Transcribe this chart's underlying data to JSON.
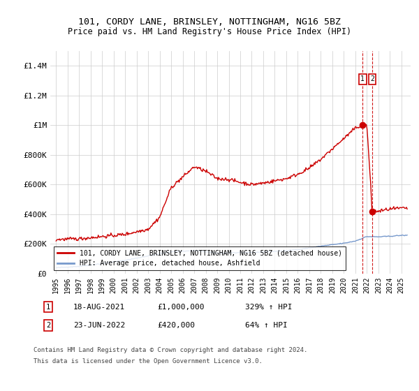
{
  "title": "101, CORDY LANE, BRINSLEY, NOTTINGHAM, NG16 5BZ",
  "subtitle": "Price paid vs. HM Land Registry's House Price Index (HPI)",
  "ylabel_ticks": [
    "£0",
    "£200K",
    "£400K",
    "£600K",
    "£800K",
    "£1M",
    "£1.2M",
    "£1.4M"
  ],
  "ylim": [
    0,
    1500000
  ],
  "yticks": [
    0,
    200000,
    400000,
    600000,
    800000,
    1000000,
    1200000,
    1400000
  ],
  "legend_line1": "101, CORDY LANE, BRINSLEY, NOTTINGHAM, NG16 5BZ (detached house)",
  "legend_line2": "HPI: Average price, detached house, Ashfield",
  "note1_date": "18-AUG-2021",
  "note1_price": "£1,000,000",
  "note1_hpi": "329% ↑ HPI",
  "note2_date": "23-JUN-2022",
  "note2_price": "£420,000",
  "note2_hpi": "64% ↑ HPI",
  "footnote1": "Contains HM Land Registry data © Crown copyright and database right 2024.",
  "footnote2": "This data is licensed under the Open Government Licence v3.0.",
  "red_color": "#cc0000",
  "blue_color": "#7799cc",
  "grid_color": "#cccccc",
  "vline_color": "#cc0000",
  "background_color": "#ffffff",
  "transaction1_x": 2021.63,
  "transaction1_y": 1000000,
  "transaction2_x": 2022.47,
  "transaction2_y": 420000,
  "note_box_color": "#cc0000",
  "xlim_left": 1994.5,
  "xlim_right": 2025.8
}
